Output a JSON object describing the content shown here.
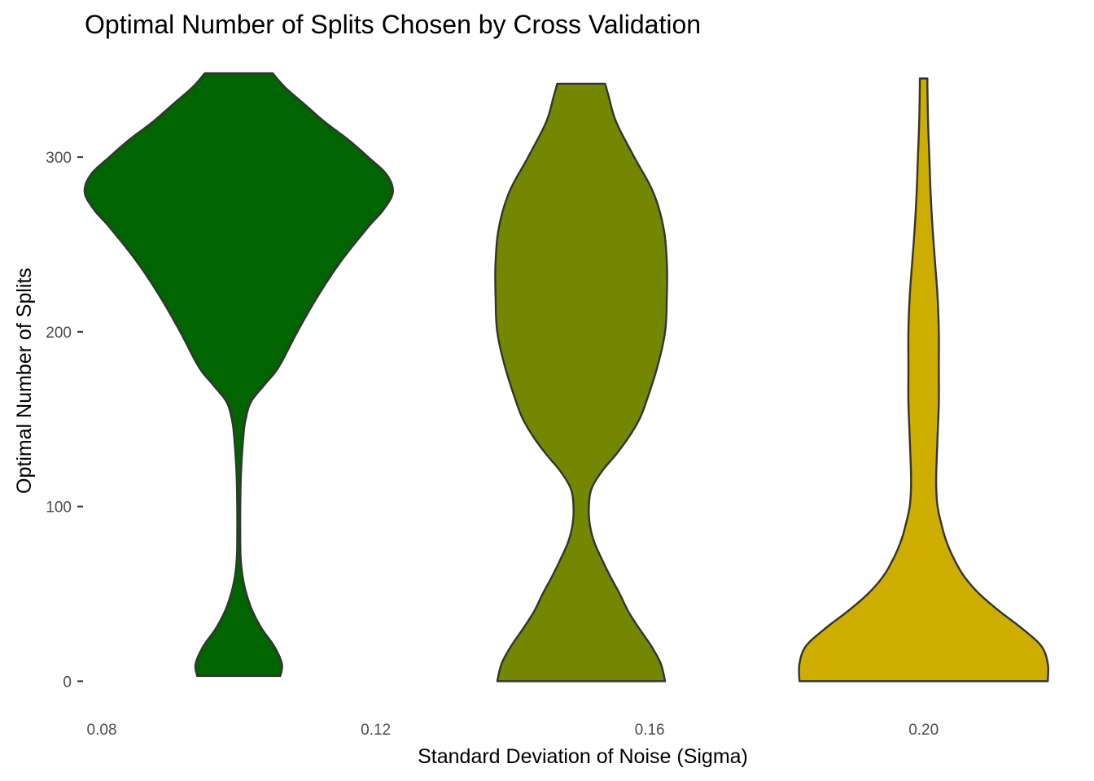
{
  "chart_data": {
    "type": "violin",
    "title": "Optimal Number of Splits Chosen by Cross Validation",
    "xlabel": "Standard Deviation of Noise (Sigma)",
    "ylabel": "Optimal Number of Splits",
    "x_ticks": [
      {
        "value": 0.08,
        "label": "0.08"
      },
      {
        "value": 0.12,
        "label": "0.12"
      },
      {
        "value": 0.16,
        "label": "0.16"
      },
      {
        "value": 0.2,
        "label": "0.20"
      }
    ],
    "y_ticks": [
      {
        "value": 0,
        "label": "0"
      },
      {
        "value": 100,
        "label": "100"
      },
      {
        "value": 200,
        "label": "200"
      },
      {
        "value": 300,
        "label": "300"
      }
    ],
    "xlim": [
      0.0775,
      0.2225
    ],
    "ylim": [
      -18,
      362
    ],
    "grid": false,
    "series": [
      {
        "x": 0.1,
        "color": "#006400",
        "half_width_sigma": 0.0225,
        "profile": [
          [
            3,
            0.27
          ],
          [
            10,
            0.28
          ],
          [
            20,
            0.23
          ],
          [
            30,
            0.15
          ],
          [
            40,
            0.09
          ],
          [
            50,
            0.05
          ],
          [
            60,
            0.025
          ],
          [
            70,
            0.013
          ],
          [
            80,
            0.01
          ],
          [
            100,
            0.01
          ],
          [
            120,
            0.015
          ],
          [
            140,
            0.03
          ],
          [
            150,
            0.045
          ],
          [
            160,
            0.08
          ],
          [
            170,
            0.17
          ],
          [
            180,
            0.26
          ],
          [
            200,
            0.38
          ],
          [
            220,
            0.51
          ],
          [
            240,
            0.66
          ],
          [
            260,
            0.84
          ],
          [
            270,
            0.94
          ],
          [
            280,
            1.0
          ],
          [
            290,
            0.96
          ],
          [
            300,
            0.84
          ],
          [
            310,
            0.71
          ],
          [
            320,
            0.56
          ],
          [
            330,
            0.43
          ],
          [
            340,
            0.3
          ],
          [
            348,
            0.22
          ]
        ]
      },
      {
        "x": 0.15,
        "color": "#738800",
        "half_width_sigma": 0.0125,
        "profile": [
          [
            0,
            0.98
          ],
          [
            10,
            0.93
          ],
          [
            20,
            0.82
          ],
          [
            30,
            0.68
          ],
          [
            40,
            0.55
          ],
          [
            50,
            0.45
          ],
          [
            60,
            0.34
          ],
          [
            70,
            0.24
          ],
          [
            80,
            0.15
          ],
          [
            90,
            0.1
          ],
          [
            100,
            0.09
          ],
          [
            110,
            0.12
          ],
          [
            120,
            0.24
          ],
          [
            130,
            0.41
          ],
          [
            140,
            0.56
          ],
          [
            150,
            0.68
          ],
          [
            160,
            0.76
          ],
          [
            180,
            0.89
          ],
          [
            200,
            0.98
          ],
          [
            220,
            1.0
          ],
          [
            240,
            1.0
          ],
          [
            260,
            0.96
          ],
          [
            280,
            0.84
          ],
          [
            300,
            0.62
          ],
          [
            320,
            0.41
          ],
          [
            335,
            0.32
          ],
          [
            342,
            0.28
          ]
        ]
      },
      {
        "x": 0.2,
        "color": "#CDAD00",
        "half_width_sigma": 0.0185,
        "profile": [
          [
            0,
            0.98
          ],
          [
            10,
            0.98
          ],
          [
            20,
            0.93
          ],
          [
            30,
            0.78
          ],
          [
            40,
            0.6
          ],
          [
            50,
            0.44
          ],
          [
            60,
            0.32
          ],
          [
            70,
            0.24
          ],
          [
            80,
            0.18
          ],
          [
            90,
            0.14
          ],
          [
            100,
            0.11
          ],
          [
            110,
            0.1
          ],
          [
            120,
            0.1
          ],
          [
            140,
            0.11
          ],
          [
            160,
            0.12
          ],
          [
            180,
            0.12
          ],
          [
            200,
            0.12
          ],
          [
            220,
            0.11
          ],
          [
            240,
            0.09
          ],
          [
            260,
            0.07
          ],
          [
            280,
            0.055
          ],
          [
            300,
            0.045
          ],
          [
            320,
            0.035
          ],
          [
            340,
            0.03
          ],
          [
            345,
            0.03
          ]
        ]
      }
    ]
  }
}
